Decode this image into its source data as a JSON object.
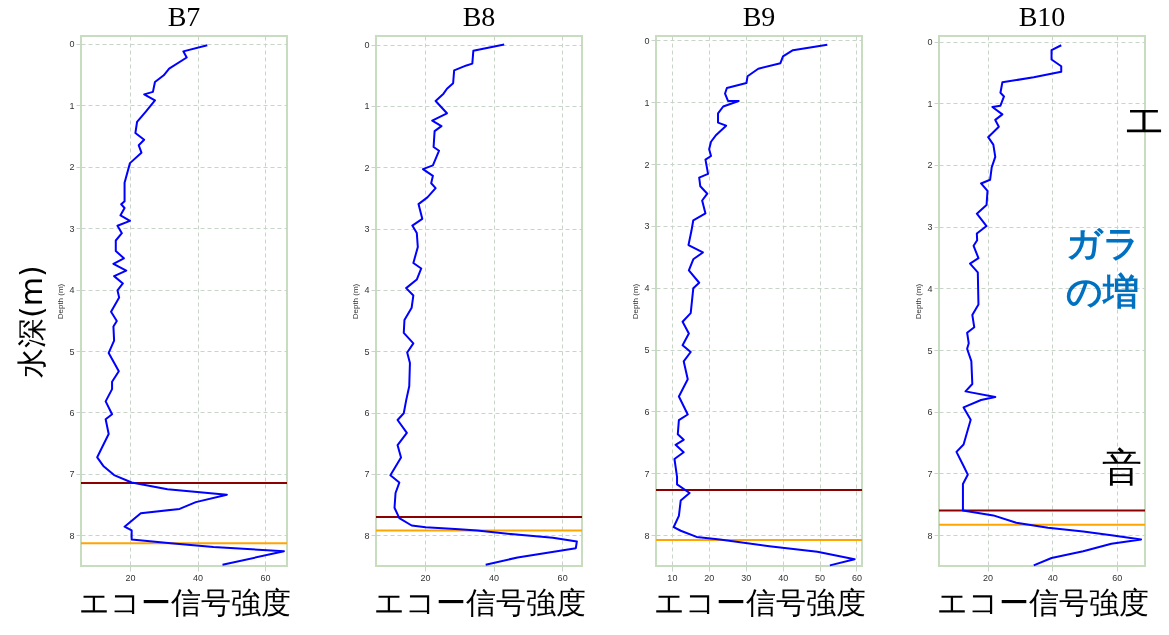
{
  "chart_data": [
    {
      "type": "line",
      "title": "B7",
      "xlabel": "エコー信号強度",
      "ylabel": "Depth (m)",
      "color": "#0000ff",
      "grid": true,
      "marker": "none",
      "line_style": "solid",
      "xlim": [
        5.5,
        66.5
      ],
      "xticks": [
        20,
        40,
        60
      ],
      "ylim": [
        8.5,
        -0.13
      ],
      "yticks": [
        0,
        1,
        2,
        3,
        4,
        5,
        6,
        7,
        8
      ],
      "x": [
        42.9,
        35.8,
        36.8,
        31.6,
        30,
        27.4,
        26.8,
        24.2,
        27.4,
        24.7,
        22.1,
        21.6,
        24.2,
        22.6,
        23.4,
        20,
        18.4,
        18.4,
        17.4,
        18.4,
        17.2,
        20,
        16.3,
        17.6,
        15.8,
        15.8,
        18.2,
        15.1,
        18.9,
        15.3,
        17.9,
        16.3,
        16.8,
        14.4,
        16.1,
        15.1,
        15.3,
        13.7,
        16.7,
        14.7,
        14.7,
        12.8,
        14.7,
        12.8,
        13.7,
        11.9,
        10.3,
        12.1,
        15.3,
        20.5,
        31.1,
        48.7,
        39.5,
        34.7,
        23.2,
        18.4,
        20.5,
        20.5,
        32.1,
        44.7,
        65.6,
        47.4
      ],
      "values": [
        0.02,
        0.12,
        0.22,
        0.4,
        0.51,
        0.62,
        0.78,
        0.82,
        0.92,
        1.1,
        1.27,
        1.45,
        1.56,
        1.65,
        1.77,
        1.94,
        2.26,
        2.56,
        2.61,
        2.67,
        2.79,
        2.88,
        2.96,
        3.08,
        3.2,
        3.37,
        3.49,
        3.58,
        3.69,
        3.78,
        3.9,
        4.01,
        4.13,
        4.36,
        4.51,
        4.6,
        4.83,
        5.03,
        5.33,
        5.5,
        5.62,
        5.82,
        6.03,
        6.11,
        6.35,
        6.55,
        6.73,
        6.87,
        7.02,
        7.14,
        7.25,
        7.34,
        7.46,
        7.57,
        7.64,
        7.86,
        7.92,
        8.07,
        8.13,
        8.19,
        8.26,
        8.48
      ],
      "ref_lines": [
        {
          "axis": "y",
          "value": 7.15,
          "color": "#8b0000"
        },
        {
          "axis": "y",
          "value": 8.13,
          "color": "#ffa500"
        }
      ],
      "annotations": [
        "水深(m)"
      ]
    },
    {
      "type": "line",
      "title": "B8",
      "xlabel": "エコー信号強度",
      "ylabel": "Depth (m)",
      "color": "#0000ff",
      "grid": true,
      "marker": "none",
      "line_style": "solid",
      "xlim": [
        5.7,
        65.8
      ],
      "xticks": [
        20,
        40,
        60
      ],
      "ylim": [
        8.5,
        -0.14
      ],
      "yticks": [
        0,
        1,
        2,
        3,
        4,
        5,
        6,
        7,
        8
      ],
      "x": [
        43.1,
        34.1,
        33.8,
        32.1,
        28.5,
        28.2,
        26.4,
        25.4,
        23.1,
        26.4,
        22.1,
        24.8,
        22.8,
        22.5,
        24.1,
        22.3,
        19.4,
        22.3,
        21.8,
        23.1,
        20.7,
        18.1,
        19.2,
        16.3,
        17.6,
        17.9,
        16.6,
        18.9,
        17.6,
        14.5,
        16.6,
        16.1,
        14,
        13.8,
        16.6,
        14.8,
        15.6,
        15.4,
        14.5,
        13.8,
        12,
        14.7,
        12,
        13,
        9.9,
        12.5,
        11.4,
        11.1,
        12.5,
        16.1,
        20.2,
        30,
        35.2,
        45,
        57.3,
        64.3,
        64,
        47,
        37.7
      ],
      "values": [
        0,
        0.1,
        0.31,
        0.34,
        0.42,
        0.63,
        0.72,
        0.8,
        0.92,
        1.12,
        1.24,
        1.33,
        1.41,
        1.67,
        1.73,
        1.97,
        2.03,
        2.14,
        2.26,
        2.34,
        2.49,
        2.6,
        2.84,
        2.95,
        3.07,
        3.3,
        3.56,
        3.65,
        3.83,
        3.97,
        4.09,
        4.29,
        4.49,
        4.7,
        4.87,
        5.02,
        5.19,
        5.57,
        5.8,
        6.01,
        6.12,
        6.33,
        6.53,
        6.73,
        7.02,
        7.14,
        7.31,
        7.55,
        7.72,
        7.84,
        7.87,
        7.9,
        7.92,
        7.98,
        8.04,
        8.1,
        8.21,
        8.36,
        8.48
      ],
      "ref_lines": [
        {
          "axis": "y",
          "value": 7.7,
          "color": "#8b0000"
        },
        {
          "axis": "y",
          "value": 7.92,
          "color": "#ffa500"
        }
      ]
    },
    {
      "type": "line",
      "title": "B9",
      "xlabel": "エコー信号強度",
      "ylabel": "Depth (m)",
      "color": "#0000ff",
      "grid": true,
      "marker": "none",
      "line_style": "solid",
      "xlim": [
        5.7,
        61.5
      ],
      "xticks": [
        10,
        20,
        30,
        40,
        50,
        60
      ],
      "ylim": [
        8.5,
        -0.07
      ],
      "yticks": [
        0,
        1,
        2,
        3,
        4,
        5,
        6,
        7,
        8
      ],
      "x": [
        52.1,
        42.8,
        40.1,
        39.4,
        33.4,
        30.5,
        30.2,
        24.9,
        24.4,
        25.2,
        28.1,
        23.9,
        22.5,
        22.5,
        24.7,
        22,
        20.6,
        20.1,
        20.6,
        19.1,
        19.8,
        17.4,
        17.7,
        19.6,
        18.2,
        19.1,
        15.8,
        15.3,
        14.5,
        18.4,
        15.8,
        14.6,
        17.4,
        15.8,
        15.1,
        12.9,
        14.6,
        12.9,
        15.1,
        13.2,
        14.3,
        11.9,
        14.3,
        11.9,
        11.6,
        13.2,
        11,
        13.2,
        10.7,
        11.4,
        11.4,
        14.8,
        12.4,
        11.9,
        10.5,
        12.4,
        16.7,
        23,
        36.4,
        49.4,
        59.5,
        52.8
      ],
      "values": [
        0.07,
        0.16,
        0.26,
        0.37,
        0.46,
        0.58,
        0.69,
        0.77,
        0.86,
        0.98,
        0.98,
        1.07,
        1.18,
        1.33,
        1.38,
        1.53,
        1.64,
        1.76,
        1.87,
        1.93,
        2.16,
        2.22,
        2.36,
        2.48,
        2.59,
        2.8,
        2.91,
        3.08,
        3.31,
        3.43,
        3.54,
        3.72,
        3.92,
        4.01,
        4.41,
        4.55,
        4.74,
        4.93,
        5.04,
        5.19,
        5.48,
        5.76,
        6.05,
        6.14,
        6.37,
        6.46,
        6.54,
        6.66,
        6.77,
        7.06,
        7.18,
        7.32,
        7.44,
        7.69,
        7.87,
        7.93,
        8.03,
        8.07,
        8.18,
        8.27,
        8.39,
        8.49
      ],
      "ref_lines": [
        {
          "axis": "y",
          "value": 7.27,
          "color": "#8b0000"
        },
        {
          "axis": "y",
          "value": 8.08,
          "color": "#ffa500"
        }
      ]
    },
    {
      "type": "line",
      "title": "B10",
      "xlabel": "エコー信号強度",
      "ylabel": "Depth (m)",
      "color": "#0000ff",
      "grid": true,
      "marker": "none",
      "line_style": "solid",
      "xlim": [
        5,
        68.7
      ],
      "xticks": [
        20,
        40,
        60
      ],
      "ylim": [
        8.5,
        -0.09
      ],
      "yticks": [
        0,
        1,
        2,
        3,
        4,
        5,
        6,
        7,
        8
      ],
      "x": [
        42.8,
        39.8,
        39.8,
        42.8,
        42.8,
        34.3,
        24.6,
        24,
        25.1,
        24,
        21.5,
        24.6,
        22.4,
        23.5,
        20.2,
        21.8,
        22.4,
        21.3,
        20.8,
        18,
        20,
        19.7,
        16.7,
        19.7,
        16.7,
        16.8,
        15.7,
        17.2,
        14.6,
        17,
        17.2,
        15.3,
        15.9,
        13.7,
        14.2,
        13.7,
        15,
        15.3,
        13.2,
        22.4,
        18,
        12.6,
        14.8,
        13.2,
        12.6,
        10.4,
        12.6,
        13.9,
        12.4,
        12.4,
        21.8,
        28.9,
        38.7,
        49.6,
        58.3,
        67.5,
        58.3,
        49.6,
        39.8,
        34.3
      ],
      "values": [
        0.06,
        0.14,
        0.29,
        0.4,
        0.49,
        0.58,
        0.66,
        0.83,
        0.89,
        1.04,
        1.06,
        1.18,
        1.27,
        1.38,
        1.55,
        1.67,
        1.87,
        2.04,
        2.24,
        2.3,
        2.42,
        2.65,
        2.79,
        2.99,
        3.11,
        3.22,
        3.31,
        3.51,
        3.6,
        3.74,
        4.26,
        4.43,
        4.63,
        4.72,
        4.89,
        4.98,
        5.18,
        5.55,
        5.67,
        5.76,
        5.81,
        5.93,
        6.13,
        6.42,
        6.53,
        6.65,
        6.88,
        7.02,
        7.17,
        7.6,
        7.68,
        7.8,
        7.88,
        7.94,
        8,
        8.07,
        8.14,
        8.26,
        8.37,
        8.49
      ],
      "ref_lines": [
        {
          "axis": "y",
          "value": 7.6,
          "color": "#8b0000"
        },
        {
          "axis": "y",
          "value": 7.83,
          "color": "#ffa500"
        }
      ],
      "annotations": [
        "エ",
        "ガラ",
        "の増",
        "音"
      ]
    }
  ]
}
